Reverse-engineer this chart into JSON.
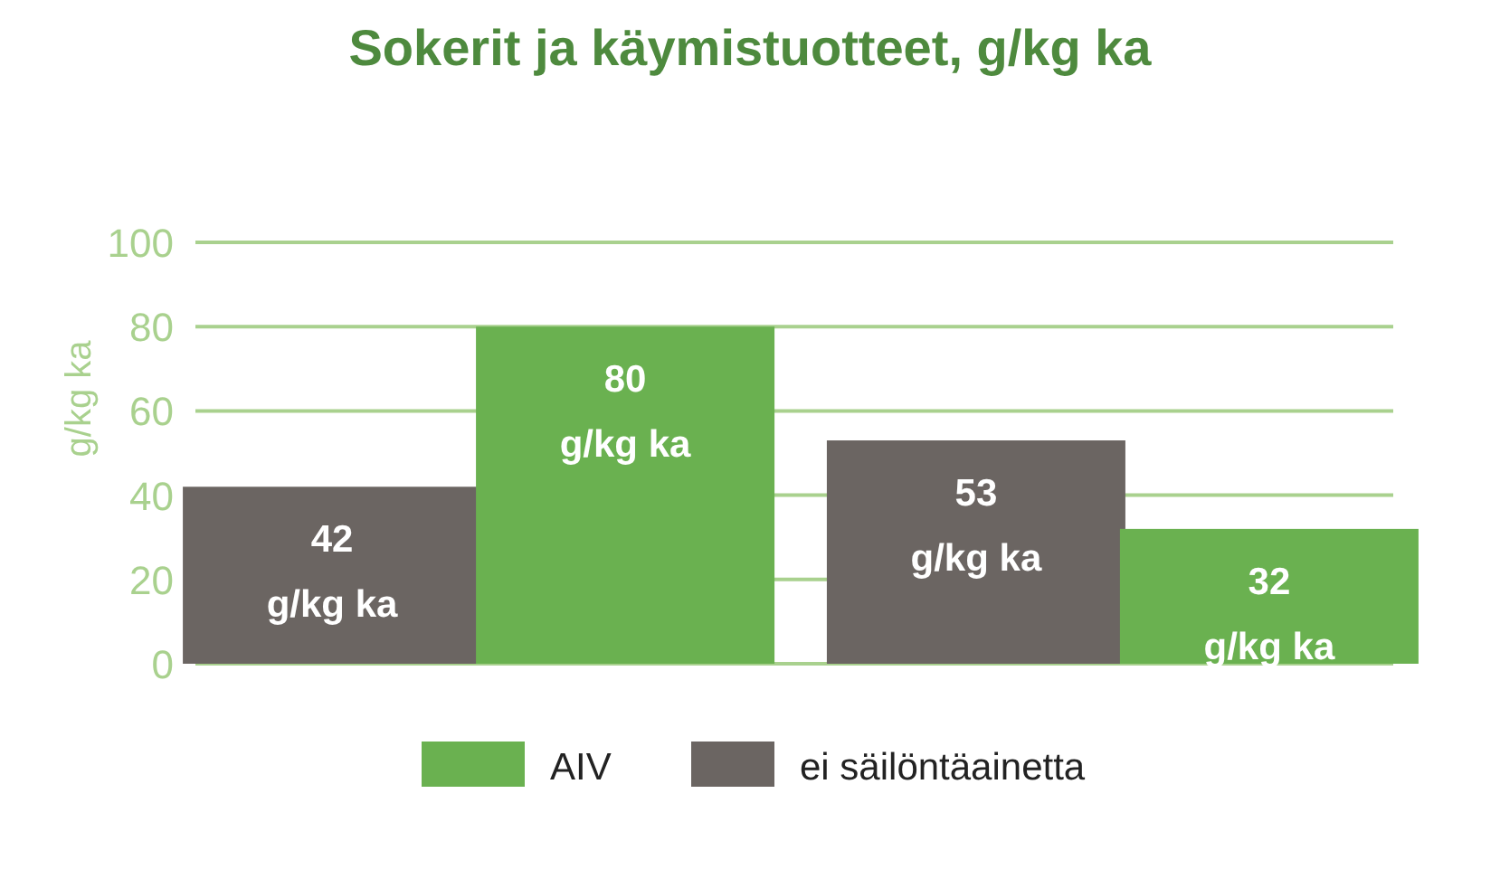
{
  "chart_data": {
    "type": "bar",
    "title": "Sokerit ja käymistuotteet, g/kg ka",
    "ylabel": "g/kg ka",
    "categories": [
      null,
      null
    ],
    "series": [
      {
        "name": "AIV",
        "color": "#6ab150",
        "values": [
          80,
          32
        ],
        "value_labels": [
          "80 g/kg ka",
          "32 g/kg ka"
        ]
      },
      {
        "name": "ei säilöntäainetta",
        "color": "#6b6562",
        "values": [
          42,
          53
        ],
        "value_labels": [
          "42 g/kg ka",
          "53 g/kg ka"
        ]
      }
    ],
    "ylim": [
      0,
      100
    ],
    "yticks": [
      0,
      20,
      40,
      60,
      80,
      100
    ],
    "grid": "y",
    "legend": "bottom"
  }
}
